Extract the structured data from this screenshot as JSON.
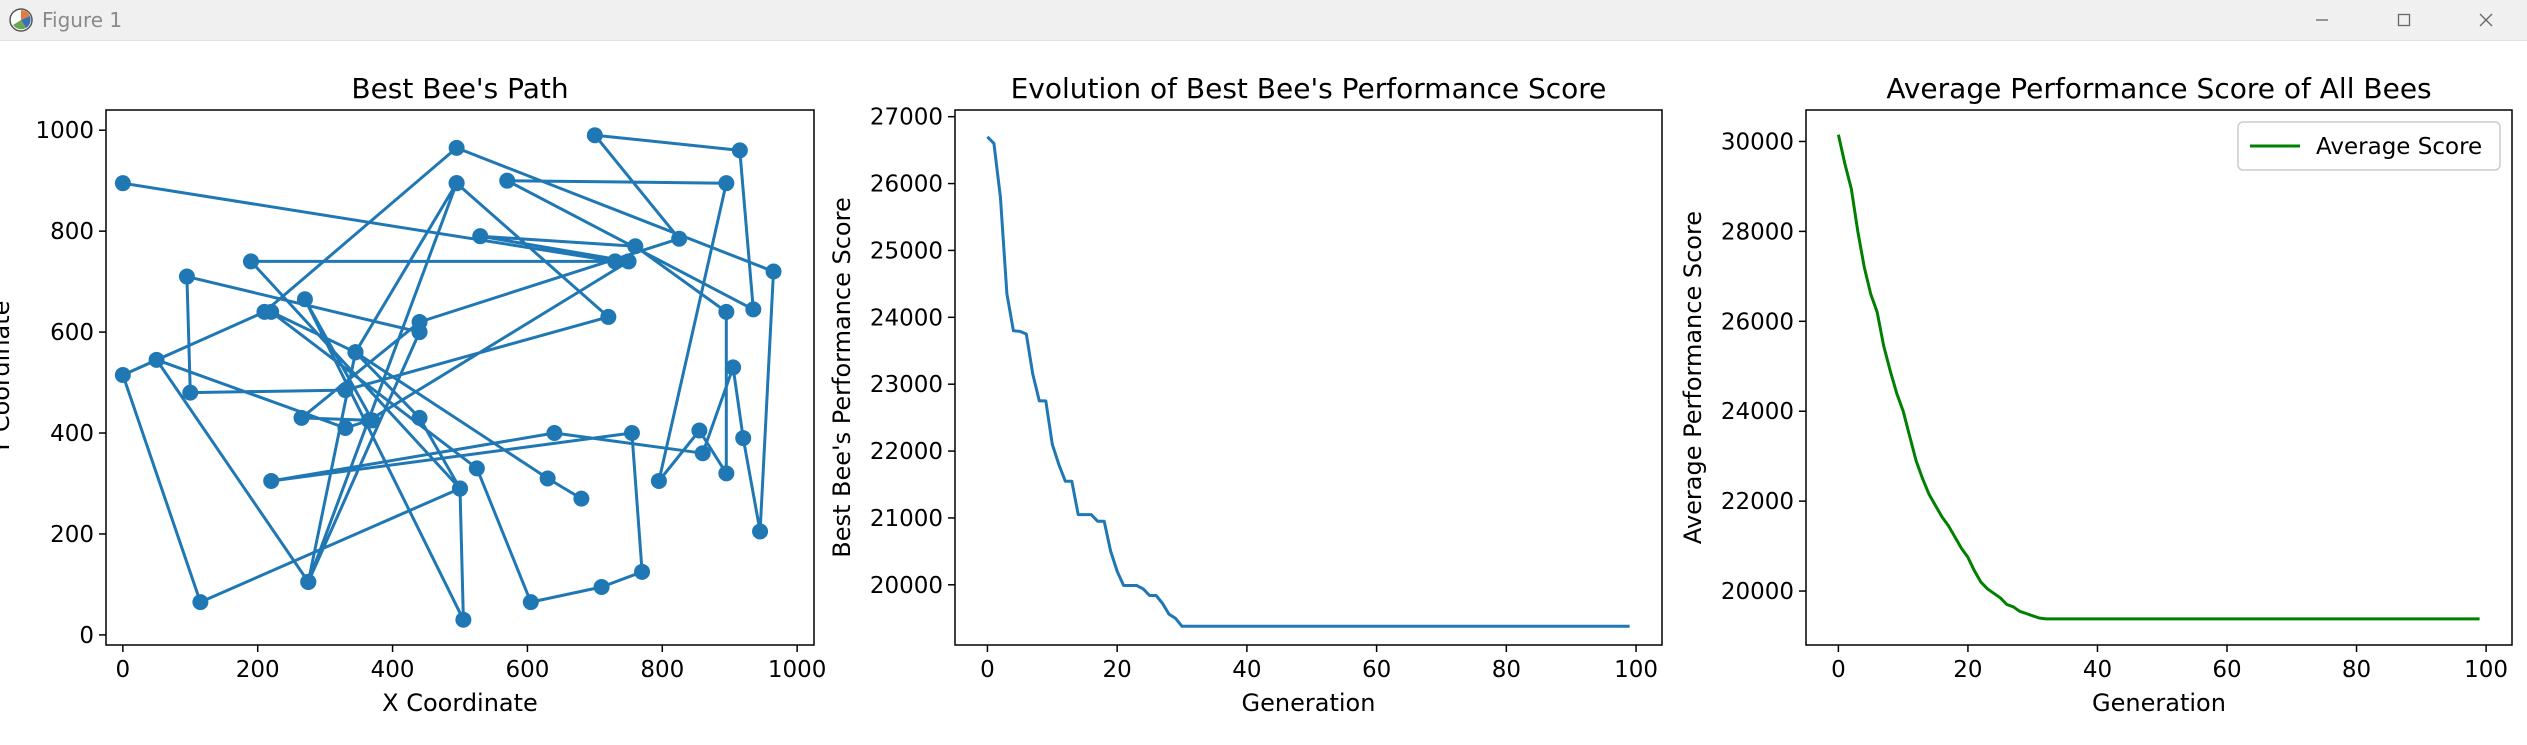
{
  "window": {
    "title": "Figure 1",
    "icons": [
      "matplotlib-icon",
      "minimize-icon",
      "maximize-icon",
      "close-icon"
    ]
  },
  "chart_data": [
    {
      "type": "scatter",
      "mode": "lines+markers",
      "title": "Best Bee's Path",
      "xlabel": "X Coordinate",
      "ylabel": "Y Coordinate",
      "xlim": [
        -25,
        1025
      ],
      "ylim": [
        -20,
        1040
      ],
      "xticks": [
        0,
        200,
        400,
        600,
        800,
        1000
      ],
      "yticks": [
        0,
        200,
        400,
        600,
        800,
        1000
      ],
      "color": "#1f77b4",
      "points": [
        [
          0,
          895
        ],
        [
          730,
          740
        ],
        [
          190,
          740
        ],
        [
          500,
          290
        ],
        [
          440,
          430
        ],
        [
          345,
          560
        ],
        [
          275,
          105
        ],
        [
          440,
          600
        ],
        [
          95,
          710
        ],
        [
          100,
          480
        ],
        [
          330,
          485
        ],
        [
          720,
          630
        ],
        [
          495,
          895
        ],
        [
          345,
          560
        ],
        [
          220,
          640
        ],
        [
          525,
          330
        ],
        [
          605,
          65
        ],
        [
          710,
          95
        ],
        [
          770,
          125
        ],
        [
          755,
          400
        ],
        [
          220,
          305
        ],
        [
          640,
          400
        ],
        [
          860,
          360
        ],
        [
          905,
          530
        ],
        [
          920,
          390
        ],
        [
          945,
          205
        ],
        [
          965,
          720
        ],
        [
          495,
          965
        ],
        [
          210,
          640
        ],
        [
          0,
          515
        ],
        [
          115,
          65
        ],
        [
          500,
          290
        ],
        [
          505,
          30
        ],
        [
          270,
          665
        ],
        [
          370,
          425
        ],
        [
          265,
          430
        ],
        [
          440,
          620
        ],
        [
          825,
          785
        ],
        [
          700,
          990
        ],
        [
          915,
          960
        ],
        [
          935,
          645
        ],
        [
          570,
          900
        ],
        [
          895,
          895
        ],
        [
          795,
          305
        ],
        [
          855,
          405
        ],
        [
          895,
          320
        ],
        [
          895,
          640
        ],
        [
          760,
          770
        ],
        [
          530,
          790
        ],
        [
          750,
          740
        ],
        [
          365,
          425
        ],
        [
          330,
          410
        ],
        [
          50,
          545
        ],
        [
          275,
          105
        ],
        [
          495,
          895
        ],
        [
          345,
          560
        ],
        [
          630,
          310
        ],
        [
          680,
          270
        ]
      ]
    },
    {
      "type": "line",
      "title": "Evolution of Best Bee's Performance Score",
      "xlabel": "Generation",
      "ylabel": "Best Bee's Performance Score",
      "xlim": [
        -5,
        104
      ],
      "ylim": [
        19100,
        27100
      ],
      "xticks": [
        0,
        20,
        40,
        60,
        80,
        100
      ],
      "yticks": [
        20000,
        21000,
        22000,
        23000,
        24000,
        25000,
        26000,
        27000
      ],
      "color": "#1f77b4",
      "x": [
        0,
        1,
        2,
        3,
        4,
        5,
        6,
        7,
        8,
        9,
        10,
        11,
        12,
        13,
        14,
        15,
        16,
        17,
        18,
        19,
        20,
        21,
        22,
        23,
        24,
        25,
        26,
        27,
        28,
        29,
        30,
        99
      ],
      "y": [
        26700,
        26600,
        25800,
        24350,
        23800,
        23790,
        23750,
        23150,
        22750,
        22750,
        22100,
        21800,
        21550,
        21550,
        21050,
        21050,
        21050,
        20950,
        20950,
        20500,
        20200,
        19990,
        19990,
        19990,
        19940,
        19840,
        19840,
        19720,
        19560,
        19500,
        19380,
        19380
      ]
    },
    {
      "type": "line",
      "title": "Average Performance Score of All Bees",
      "xlabel": "Generation",
      "ylabel": "Average Performance Score",
      "xlim": [
        -5,
        104
      ],
      "ylim": [
        18800,
        30700
      ],
      "xticks": [
        0,
        20,
        40,
        60,
        80,
        100
      ],
      "yticks": [
        20000,
        22000,
        24000,
        26000,
        28000,
        30000
      ],
      "legend": "top-right",
      "color": "#008000",
      "series": [
        {
          "name": "Average Score",
          "x": [
            0,
            1,
            2,
            3,
            4,
            5,
            6,
            7,
            8,
            9,
            10,
            11,
            12,
            13,
            14,
            15,
            16,
            17,
            18,
            19,
            20,
            21,
            22,
            23,
            24,
            25,
            26,
            27,
            28,
            29,
            30,
            31,
            32,
            33,
            34,
            35,
            36,
            37,
            38,
            99
          ],
          "y": [
            30150,
            29500,
            28950,
            28000,
            27200,
            26600,
            26200,
            25450,
            24900,
            24400,
            24000,
            23450,
            22900,
            22500,
            22150,
            21900,
            21650,
            21450,
            21200,
            20950,
            20750,
            20450,
            20200,
            20050,
            19950,
            19850,
            19700,
            19650,
            19550,
            19500,
            19450,
            19400,
            19380,
            19380,
            19380,
            19380,
            19380,
            19380,
            19380,
            19380
          ]
        }
      ]
    }
  ]
}
